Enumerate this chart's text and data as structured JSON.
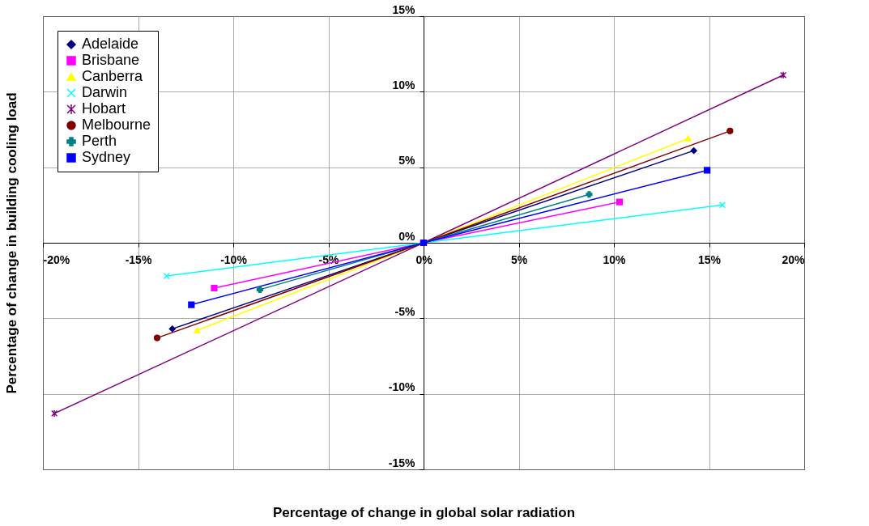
{
  "chart_data": {
    "type": "line",
    "xlabel": "Percentage of change in global solar radiation",
    "ylabel": "Percentage of change in building cooling load",
    "xlim": [
      -20,
      20
    ],
    "ylim": [
      -15,
      15
    ],
    "xticks": [
      {
        "value": -20,
        "label": "-20%"
      },
      {
        "value": -15,
        "label": "-15%"
      },
      {
        "value": -10,
        "label": "-10%"
      },
      {
        "value": -5,
        "label": "-5%"
      },
      {
        "value": 0,
        "label": "0%"
      },
      {
        "value": 5,
        "label": "5%"
      },
      {
        "value": 10,
        "label": "10%"
      },
      {
        "value": 15,
        "label": "15%"
      },
      {
        "value": 20,
        "label": "20%"
      }
    ],
    "yticks": [
      {
        "value": -15,
        "label": "-15%"
      },
      {
        "value": -10,
        "label": "-10%"
      },
      {
        "value": -5,
        "label": "-5%"
      },
      {
        "value": 0,
        "label": "0%"
      },
      {
        "value": 5,
        "label": "5%"
      },
      {
        "value": 10,
        "label": "10%"
      },
      {
        "value": 15,
        "label": "15%"
      }
    ],
    "grid": true,
    "legend": "top left",
    "line_style": "solid",
    "series": [
      {
        "name": "Adelaide",
        "color": "#000080",
        "marker": "diamond",
        "x": [
          -13.2,
          0,
          14.2
        ],
        "values": [
          -5.7,
          0,
          6.1
        ]
      },
      {
        "name": "Brisbane",
        "color": "#ff00ff",
        "marker": "square",
        "x": [
          -11.0,
          0,
          10.3
        ],
        "values": [
          -3.0,
          0,
          2.7
        ]
      },
      {
        "name": "Canberra",
        "color": "#ffff00",
        "marker": "triangle",
        "x": [
          -11.9,
          0,
          13.9
        ],
        "values": [
          -5.8,
          0,
          6.9
        ]
      },
      {
        "name": "Darwin",
        "color": "#00ffff",
        "marker": "cross",
        "x": [
          -13.5,
          0,
          15.7
        ],
        "values": [
          -2.2,
          0,
          2.5
        ]
      },
      {
        "name": "Hobart",
        "color": "#800080",
        "marker": "cross",
        "x": [
          -19.4,
          0,
          18.9
        ],
        "values": [
          -11.3,
          0,
          11.1
        ]
      },
      {
        "name": "Melbourne",
        "color": "#800000",
        "marker": "circle",
        "x": [
          -14.0,
          0,
          16.1
        ],
        "values": [
          -6.3,
          0,
          7.4
        ]
      },
      {
        "name": "Perth",
        "color": "#008080",
        "marker": "cross",
        "x": [
          -8.6,
          0,
          8.7
        ],
        "values": [
          -3.1,
          0,
          3.2
        ]
      },
      {
        "name": "Sydney",
        "color": "#0000ff",
        "marker": "square",
        "x": [
          -12.2,
          0,
          14.9
        ],
        "values": [
          -4.1,
          0,
          4.8
        ]
      }
    ]
  }
}
